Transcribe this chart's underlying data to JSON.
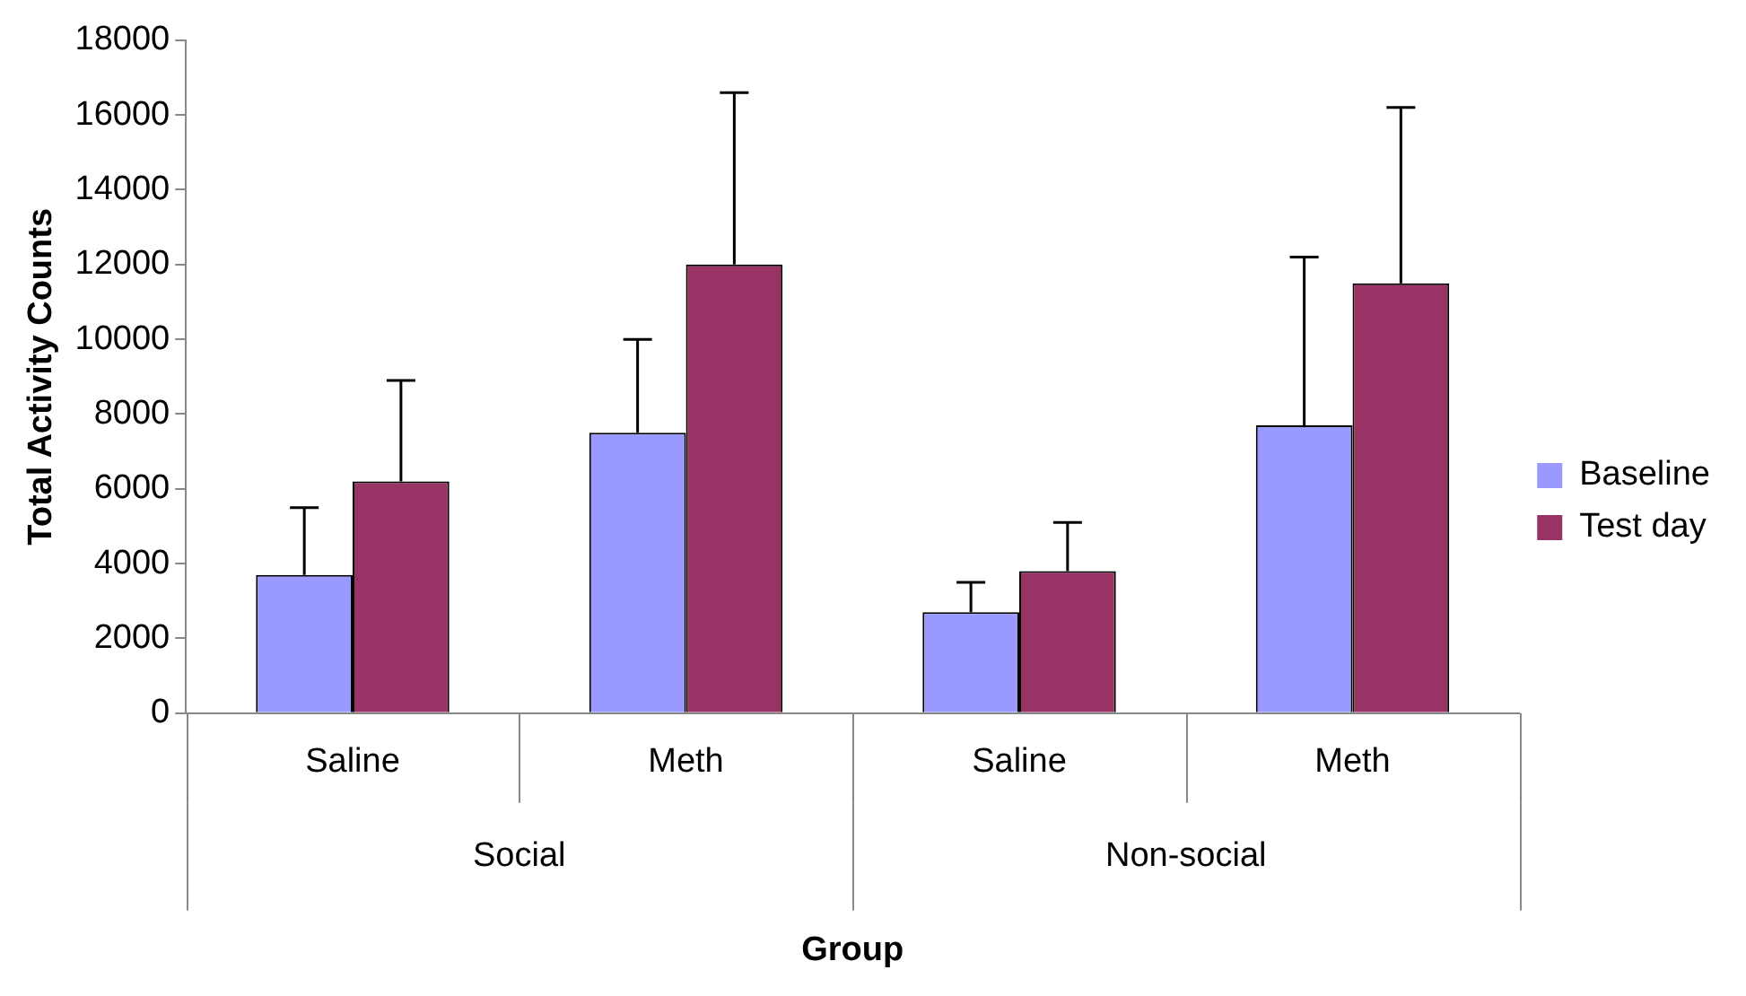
{
  "chart_data": {
    "type": "bar",
    "xlabel": "Group",
    "ylabel": "Total Activity Counts",
    "categories": [
      "Saline",
      "Meth",
      "Saline",
      "Meth"
    ],
    "series": [
      {
        "name": "Baseline",
        "color": "#9999ff",
        "values": [
          3700,
          7500,
          2700,
          7700
        ],
        "errors": [
          [
            3700,
            5500
          ],
          [
            7500,
            10000
          ],
          [
            2700,
            3500
          ],
          [
            7700,
            12200
          ]
        ]
      },
      {
        "name": "Test day",
        "color": "#993366",
        "values": [
          6200,
          12000,
          3800,
          11500
        ],
        "errors": [
          [
            6200,
            8900
          ],
          [
            12000,
            16600
          ],
          [
            3800,
            5100
          ],
          [
            11500,
            16200
          ]
        ]
      }
    ],
    "annotations": [
      "Social",
      "Non-social"
    ],
    "ylim": [
      0,
      18000
    ],
    "yticks": [
      0,
      2000,
      4000,
      6000,
      8000,
      10000,
      12000,
      14000,
      16000,
      18000
    ],
    "grid": false,
    "legend": "right"
  }
}
